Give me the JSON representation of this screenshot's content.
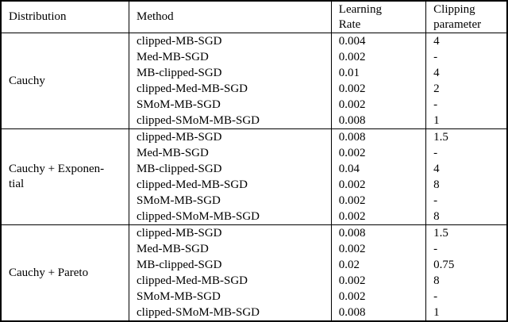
{
  "colors": {
    "background": "#ffffff",
    "border": "#000000",
    "text": "#000000"
  },
  "table": {
    "headers": {
      "distribution": "Distribution",
      "method": "Method",
      "learning_rate": "Learning\nRate",
      "clipping_parameter": "Clipping\nparameter"
    },
    "groups": [
      {
        "distribution": "Cauchy",
        "rows": [
          {
            "method": "clipped-MB-SGD",
            "lr": "0.004",
            "clip": "4"
          },
          {
            "method": "Med-MB-SGD",
            "lr": "0.002",
            "clip": "-"
          },
          {
            "method": "MB-clipped-SGD",
            "lr": "0.01",
            "clip": "4"
          },
          {
            "method": "clipped-Med-MB-SGD",
            "lr": "0.002",
            "clip": "2"
          },
          {
            "method": "SMoM-MB-SGD",
            "lr": "0.002",
            "clip": "-"
          },
          {
            "method": "clipped-SMoM-MB-SGD",
            "lr": "0.008",
            "clip": "1"
          }
        ]
      },
      {
        "distribution": "Cauchy + Exponen-\ntial",
        "rows": [
          {
            "method": "clipped-MB-SGD",
            "lr": "0.008",
            "clip": "1.5"
          },
          {
            "method": "Med-MB-SGD",
            "lr": "0.002",
            "clip": "-"
          },
          {
            "method": "MB-clipped-SGD",
            "lr": "0.04",
            "clip": "4"
          },
          {
            "method": "clipped-Med-MB-SGD",
            "lr": "0.002",
            "clip": "8"
          },
          {
            "method": "SMoM-MB-SGD",
            "lr": "0.002",
            "clip": "-"
          },
          {
            "method": "clipped-SMoM-MB-SGD",
            "lr": "0.002",
            "clip": "8"
          }
        ]
      },
      {
        "distribution": "Cauchy + Pareto",
        "rows": [
          {
            "method": "clipped-MB-SGD",
            "lr": "0.008",
            "clip": "1.5"
          },
          {
            "method": "Med-MB-SGD",
            "lr": "0.002",
            "clip": "-"
          },
          {
            "method": "MB-clipped-SGD",
            "lr": "0.02",
            "clip": "0.75"
          },
          {
            "method": "clipped-Med-MB-SGD",
            "lr": "0.002",
            "clip": "8"
          },
          {
            "method": "SMoM-MB-SGD",
            "lr": "0.002",
            "clip": "-"
          },
          {
            "method": "clipped-SMoM-MB-SGD",
            "lr": "0.008",
            "clip": "1"
          }
        ]
      }
    ]
  }
}
